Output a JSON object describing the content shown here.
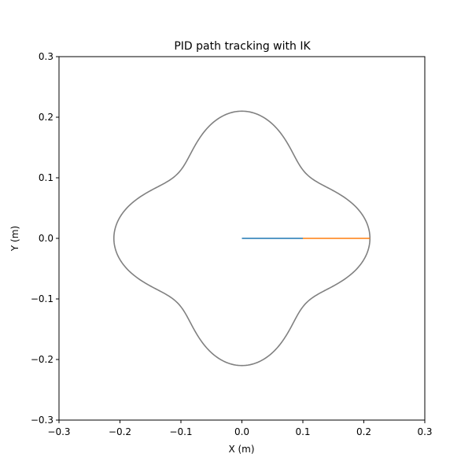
{
  "chart_data": {
    "type": "line",
    "title": "PID path tracking with IK",
    "xlabel": "X (m)",
    "ylabel": "Y (m)",
    "xlim": [
      -0.3,
      0.3
    ],
    "ylim": [
      -0.3,
      0.3
    ],
    "x_ticks": [
      "−0.3",
      "−0.2",
      "−0.1",
      "0.0",
      "0.1",
      "0.2",
      "0.3"
    ],
    "y_ticks": [
      "−0.3",
      "−0.2",
      "−0.1",
      "0.0",
      "0.1",
      "0.2",
      "0.3"
    ],
    "x_tick_values": [
      -0.3,
      -0.2,
      -0.1,
      0.0,
      0.1,
      0.2,
      0.3
    ],
    "y_tick_values": [
      -0.3,
      -0.2,
      -0.1,
      0.0,
      0.1,
      0.2,
      0.3
    ],
    "grid": false,
    "aspect": "equal",
    "series": [
      {
        "kind": "polar-curve",
        "r_base": 0.18,
        "r_amp": 0.03,
        "lobes": 4,
        "closed": true,
        "color": "#808080"
      },
      {
        "kind": "segment",
        "x": [
          0.0,
          0.1
        ],
        "y": [
          0.0,
          0.0
        ],
        "color": "#1f77b4"
      },
      {
        "kind": "segment",
        "x": [
          0.1,
          0.21
        ],
        "y": [
          0.0,
          0.0
        ],
        "color": "#ff7f0e"
      }
    ]
  }
}
